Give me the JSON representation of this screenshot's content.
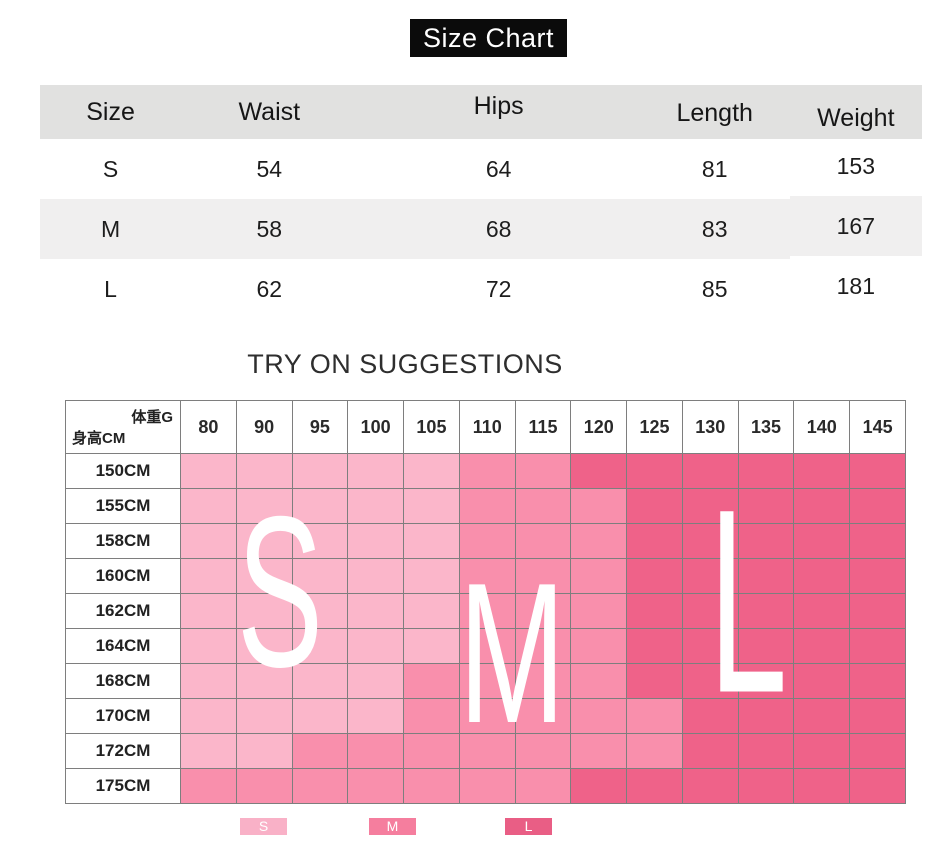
{
  "title": "Size Chart",
  "size_table": {
    "columns": [
      "Size",
      "Waist",
      "Hips",
      "Length",
      "Weight"
    ],
    "rows": [
      [
        "S",
        "54",
        "64",
        "81",
        "153"
      ],
      [
        "M",
        "58",
        "68",
        "83",
        "167"
      ],
      [
        "L",
        "62",
        "72",
        "85",
        "181"
      ]
    ]
  },
  "try_on": {
    "heading": "TRY ON SUGGESTIONS",
    "corner_top": "体重G",
    "corner_bottom": "身高CM",
    "weights": [
      "80",
      "90",
      "95",
      "100",
      "105",
      "110",
      "115",
      "120",
      "125",
      "130",
      "135",
      "140",
      "145"
    ],
    "heights": [
      "150CM",
      "155CM",
      "158CM",
      "160CM",
      "162CM",
      "164CM",
      "168CM",
      "170CM",
      "172CM",
      "175CM"
    ],
    "grid": [
      "SSSSSMMLLLLLL",
      "SSSSSMMMLLLLL",
      "SSSSSMMMLLLLL",
      "SSSSSMMMLLLLL",
      "SSSSSMMMLLLLL",
      "SSSSSMMMLLLLL",
      "SSSSMMMMLLLLL",
      "SSSSMMMMMLLLL",
      "SSMMMMMMMLLLL",
      "MMMMMMMLLLLLL"
    ],
    "size_colors": {
      "S": "#FBB6CA",
      "M": "#F98FAC",
      "L": "#EF6289"
    },
    "overlay_letters": [
      "S",
      "M",
      "L"
    ],
    "legend": [
      {
        "label": "S",
        "color": "#F9B1C7"
      },
      {
        "label": "M",
        "color": "#F57E9E"
      },
      {
        "label": "L",
        "color": "#E95E85"
      }
    ]
  },
  "chart_data": [
    {
      "type": "table",
      "title": "Size Chart",
      "columns": [
        "Size",
        "Waist",
        "Hips",
        "Length",
        "Weight"
      ],
      "rows": [
        [
          "S",
          54,
          64,
          81,
          153
        ],
        [
          "M",
          58,
          68,
          83,
          167
        ],
        [
          "L",
          62,
          72,
          85,
          181
        ]
      ]
    },
    {
      "type": "heatmap",
      "title": "TRY ON SUGGESTIONS",
      "xlabel": "体重G",
      "ylabel": "身高CM",
      "x": [
        80,
        90,
        95,
        100,
        105,
        110,
        115,
        120,
        125,
        130,
        135,
        140,
        145
      ],
      "y": [
        "150CM",
        "155CM",
        "158CM",
        "160CM",
        "162CM",
        "164CM",
        "168CM",
        "170CM",
        "172CM",
        "175CM"
      ],
      "values": [
        [
          "S",
          "S",
          "S",
          "S",
          "S",
          "M",
          "M",
          "L",
          "L",
          "L",
          "L",
          "L",
          "L"
        ],
        [
          "S",
          "S",
          "S",
          "S",
          "S",
          "M",
          "M",
          "M",
          "L",
          "L",
          "L",
          "L",
          "L"
        ],
        [
          "S",
          "S",
          "S",
          "S",
          "S",
          "M",
          "M",
          "M",
          "L",
          "L",
          "L",
          "L",
          "L"
        ],
        [
          "S",
          "S",
          "S",
          "S",
          "S",
          "M",
          "M",
          "M",
          "L",
          "L",
          "L",
          "L",
          "L"
        ],
        [
          "S",
          "S",
          "S",
          "S",
          "S",
          "M",
          "M",
          "M",
          "L",
          "L",
          "L",
          "L",
          "L"
        ],
        [
          "S",
          "S",
          "S",
          "S",
          "S",
          "M",
          "M",
          "M",
          "L",
          "L",
          "L",
          "L",
          "L"
        ],
        [
          "S",
          "S",
          "S",
          "S",
          "M",
          "M",
          "M",
          "M",
          "L",
          "L",
          "L",
          "L",
          "L"
        ],
        [
          "S",
          "S",
          "S",
          "S",
          "M",
          "M",
          "M",
          "M",
          "M",
          "L",
          "L",
          "L",
          "L"
        ],
        [
          "S",
          "S",
          "M",
          "M",
          "M",
          "M",
          "M",
          "M",
          "M",
          "L",
          "L",
          "L",
          "L"
        ],
        [
          "M",
          "M",
          "M",
          "M",
          "M",
          "M",
          "M",
          "L",
          "L",
          "L",
          "L",
          "L",
          "L"
        ]
      ],
      "legend": [
        "S",
        "M",
        "L"
      ],
      "legend_position": "bottom",
      "grid": true
    }
  ]
}
